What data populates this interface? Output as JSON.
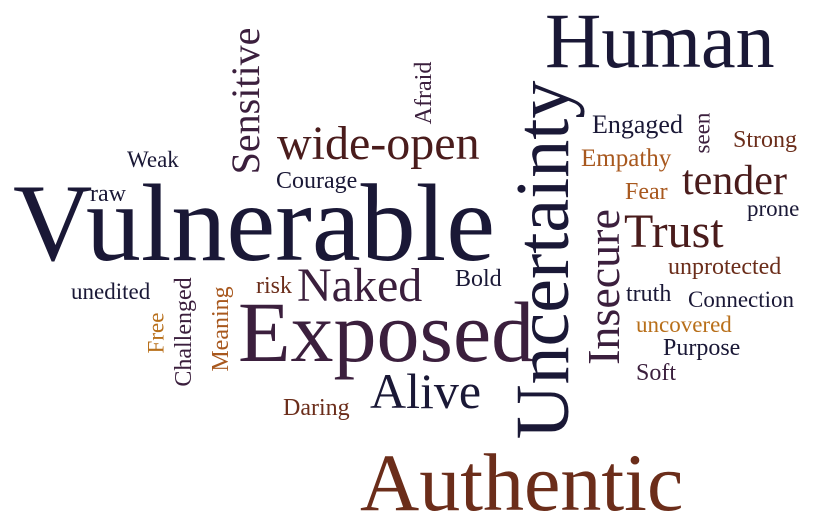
{
  "words": {
    "vulnerable": "Vulnerable",
    "human": "Human",
    "authentic": "Authentic",
    "exposed": "Exposed",
    "uncertainty": "Uncertainty",
    "sensitive": "Sensitive",
    "wide_open": "wide-open",
    "naked": "Naked",
    "alive": "Alive",
    "trust": "Trust",
    "tender": "tender",
    "insecure": "Insecure",
    "afraid": "Afraid",
    "engaged": "Engaged",
    "seen": "seen",
    "strong": "Strong",
    "empathy": "Empathy",
    "fear": "Fear",
    "prone": "prone",
    "weak": "Weak",
    "courage": "Courage",
    "raw": "raw",
    "unedited": "unedited",
    "challenged": "Challenged",
    "free": "Free",
    "meaning": "Meaning",
    "risk": "risk",
    "bold": "Bold",
    "unprotected": "unprotected",
    "truth": "truth",
    "connection": "Connection",
    "uncovered": "uncovered",
    "purpose": "Purpose",
    "soft": "Soft",
    "daring": "Daring"
  },
  "colors": {
    "navy": "#1a1836",
    "plum": "#3b1f3d",
    "maroon": "#4a1c1c",
    "brown": "#6b2d1a",
    "orange": "#a8581e",
    "amber": "#b86f1a"
  }
}
